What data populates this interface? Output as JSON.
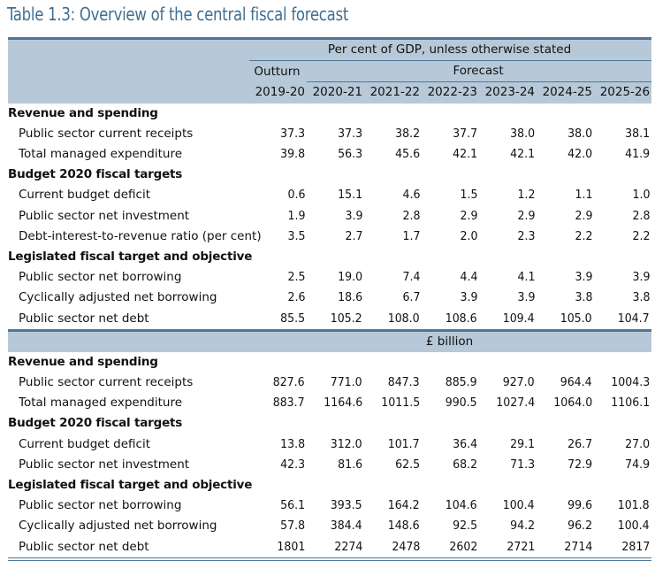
{
  "title": "Table 1.3: Overview of the central fiscal forecast",
  "header": {
    "units_top": "Per cent of GDP, unless otherwise stated",
    "outturn": "Outturn",
    "forecast": "Forecast",
    "years": [
      "2019-20",
      "2020-21",
      "2021-22",
      "2022-23",
      "2023-24",
      "2024-25",
      "2025-26"
    ]
  },
  "sections": [
    {
      "band": null,
      "groups": [
        {
          "heading": "Revenue and spending",
          "rows": [
            {
              "label": "Public sector current receipts",
              "values": [
                "37.3",
                "37.3",
                "38.2",
                "37.7",
                "38.0",
                "38.0",
                "38.1"
              ]
            },
            {
              "label": "Total managed expenditure",
              "values": [
                "39.8",
                "56.3",
                "45.6",
                "42.1",
                "42.1",
                "42.0",
                "41.9"
              ]
            }
          ]
        },
        {
          "heading": "Budget 2020 fiscal targets",
          "rows": [
            {
              "label": "Current budget deficit",
              "values": [
                "0.6",
                "15.1",
                "4.6",
                "1.5",
                "1.2",
                "1.1",
                "1.0"
              ]
            },
            {
              "label": "Public sector net investment",
              "values": [
                "1.9",
                "3.9",
                "2.8",
                "2.9",
                "2.9",
                "2.9",
                "2.8"
              ]
            },
            {
              "label": "Debt-interest-to-revenue ratio (per cent)",
              "values": [
                "3.5",
                "2.7",
                "1.7",
                "2.0",
                "2.3",
                "2.2",
                "2.2"
              ]
            }
          ]
        },
        {
          "heading": "Legislated fiscal target and objective",
          "rows": [
            {
              "label": "Public sector net borrowing",
              "values": [
                "2.5",
                "19.0",
                "7.4",
                "4.4",
                "4.1",
                "3.9",
                "3.9"
              ]
            },
            {
              "label": "Cyclically adjusted net borrowing",
              "values": [
                "2.6",
                "18.6",
                "6.7",
                "3.9",
                "3.9",
                "3.8",
                "3.8"
              ]
            },
            {
              "label": "Public sector net debt",
              "values": [
                "85.5",
                "105.2",
                "108.0",
                "108.6",
                "109.4",
                "105.0",
                "104.7"
              ]
            }
          ]
        }
      ]
    },
    {
      "band": "£ billion",
      "groups": [
        {
          "heading": "Revenue and spending",
          "rows": [
            {
              "label": "Public sector current receipts",
              "values": [
                "827.6",
                "771.0",
                "847.3",
                "885.9",
                "927.0",
                "964.4",
                "1004.3"
              ]
            },
            {
              "label": "Total managed expenditure",
              "values": [
                "883.7",
                "1164.6",
                "1011.5",
                "990.5",
                "1027.4",
                "1064.0",
                "1106.1"
              ]
            }
          ]
        },
        {
          "heading": "Budget 2020 fiscal targets",
          "rows": [
            {
              "label": "Current budget deficit",
              "values": [
                "13.8",
                "312.0",
                "101.7",
                "36.4",
                "29.1",
                "26.7",
                "27.0"
              ]
            },
            {
              "label": "Public sector net investment",
              "values": [
                "42.3",
                "81.6",
                "62.5",
                "68.2",
                "71.3",
                "72.9",
                "74.9"
              ]
            }
          ]
        },
        {
          "heading": "Legislated fiscal target and objective",
          "rows": [
            {
              "label": "Public sector net borrowing",
              "values": [
                "56.1",
                "393.5",
                "164.2",
                "104.6",
                "100.4",
                "99.6",
                "101.8"
              ]
            },
            {
              "label": "Cyclically adjusted net borrowing",
              "values": [
                "57.8",
                "384.4",
                "148.6",
                "92.5",
                "94.2",
                "96.2",
                "100.4"
              ]
            },
            {
              "label": "Public sector net debt",
              "values": [
                "1801",
                "2274",
                "2478",
                "2602",
                "2721",
                "2714",
                "2817"
              ]
            }
          ]
        }
      ]
    }
  ]
}
